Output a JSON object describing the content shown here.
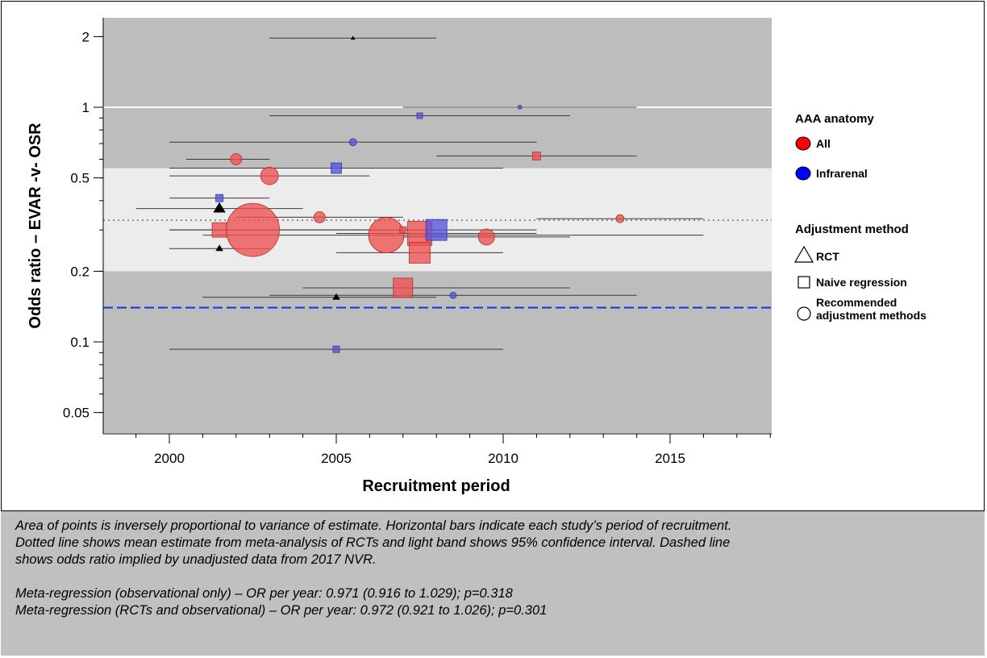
{
  "chart_data": {
    "type": "scatter",
    "xlabel": "Recruitment period",
    "ylabel": "Odds ratio – EVAR -v- OSR",
    "xlim": [
      1998,
      2018
    ],
    "ylim": [
      0.04,
      2.4
    ],
    "y_scale": "log",
    "x_ticks": [
      2000,
      2005,
      2010,
      2015
    ],
    "y_ticks": [
      0.05,
      0.1,
      0.2,
      0.5,
      1,
      2
    ],
    "y_tick_labels": [
      "0.05",
      "0.1",
      "0.2",
      "0.5",
      "1",
      "2"
    ],
    "reference_lines": {
      "null_odds_ratio": 1,
      "rct_meta_mean": 0.33,
      "rct_ci": [
        0.2,
        0.55
      ],
      "nvr_2017_unadjusted": 0.14
    },
    "colors": {
      "panel": "#bdbdbd",
      "ci_band": "#ececec",
      "all": "#f05050",
      "infrarenal": "#5555dd",
      "rct_marker": "#000000",
      "nvr_line": "#1a2fd6",
      "null_line": "#ffffff",
      "mean_line": "#8a8a8a"
    },
    "points": [
      {
        "x": 2005.5,
        "y": 1.97,
        "x_start": 2003,
        "x_end": 2008,
        "anatomy": "All",
        "method": "RCT",
        "size": 3
      },
      {
        "x": 2010.5,
        "y": 1.0,
        "x_start": 2007,
        "x_end": 2014,
        "anatomy": "Infrarenal",
        "method": "Recommended",
        "size": 2.5
      },
      {
        "x": 2007.5,
        "y": 0.92,
        "x_start": 2003,
        "x_end": 2012,
        "anatomy": "Infrarenal",
        "method": "Naive regression",
        "size": 3.5
      },
      {
        "x": 2005.5,
        "y": 0.71,
        "x_start": 2000,
        "x_end": 2011,
        "anatomy": "Infrarenal",
        "method": "Recommended",
        "size": 4.5
      },
      {
        "x": 2011,
        "y": 0.62,
        "x_start": 2008,
        "x_end": 2014,
        "anatomy": "All",
        "method": "Naive regression",
        "size": 5
      },
      {
        "x": 2002,
        "y": 0.6,
        "x_start": 2000.5,
        "x_end": 2003,
        "anatomy": "All",
        "method": "Recommended",
        "size": 7
      },
      {
        "x": 2005,
        "y": 0.55,
        "x_start": 2000,
        "x_end": 2010,
        "anatomy": "Infrarenal",
        "method": "Naive regression",
        "size": 6.5
      },
      {
        "x": 2003,
        "y": 0.51,
        "x_start": 2000,
        "x_end": 2006,
        "anatomy": "All",
        "method": "Recommended",
        "size": 11
      },
      {
        "x": 2001.5,
        "y": 0.41,
        "x_start": 2000,
        "x_end": 2003,
        "anatomy": "Infrarenal",
        "method": "Naive regression",
        "size": 4.5
      },
      {
        "x": 2001.5,
        "y": 0.37,
        "x_start": 1999,
        "x_end": 2004,
        "anatomy": "All",
        "method": "RCT",
        "size": 8
      },
      {
        "x": 2004.5,
        "y": 0.34,
        "x_start": 2002,
        "x_end": 2007,
        "anatomy": "All",
        "method": "Recommended",
        "size": 7
      },
      {
        "x": 2013.5,
        "y": 0.335,
        "x_start": 2011,
        "x_end": 2016,
        "anatomy": "All",
        "method": "Recommended",
        "size": 5
      },
      {
        "x": 2002.5,
        "y": 0.3,
        "x_start": 2000,
        "x_end": 2005,
        "anatomy": "All",
        "method": "Recommended",
        "size": 33
      },
      {
        "x": 2001.5,
        "y": 0.3,
        "x_start": 2000,
        "x_end": 2005,
        "anatomy": "All",
        "method": "Naive regression",
        "size": 9
      },
      {
        "x": 2008,
        "y": 0.3,
        "x_start": 2005,
        "x_end": 2011,
        "anatomy": "Infrarenal",
        "method": "Naive regression",
        "size": 13
      },
      {
        "x": 2007.5,
        "y": 0.29,
        "x_start": 2005,
        "x_end": 2011,
        "anatomy": "All",
        "method": "Naive regression",
        "size": 15
      },
      {
        "x": 2006.5,
        "y": 0.285,
        "x_start": 2001,
        "x_end": 2016,
        "anatomy": "All",
        "method": "Recommended",
        "size": 22
      },
      {
        "x": 2009.5,
        "y": 0.28,
        "x_start": 2007,
        "x_end": 2012,
        "anatomy": "All",
        "method": "Recommended",
        "size": 10
      },
      {
        "x": 2007,
        "y": 0.3,
        "x_start": 2005,
        "x_end": 2008,
        "anatomy": "All",
        "method": "Naive regression",
        "size": 4
      },
      {
        "x": 2007.5,
        "y": 0.24,
        "x_start": 2005,
        "x_end": 2010,
        "anatomy": "All",
        "method": "Naive regression",
        "size": 13
      },
      {
        "x": 2001.5,
        "y": 0.25,
        "x_start": 2000,
        "x_end": 2003,
        "anatomy": "All",
        "method": "RCT",
        "size": 5
      },
      {
        "x": 2007,
        "y": 0.17,
        "x_start": 2004,
        "x_end": 2012,
        "anatomy": "All",
        "method": "Naive regression",
        "size": 12
      },
      {
        "x": 2005,
        "y": 0.155,
        "x_start": 2001,
        "x_end": 2008,
        "anatomy": "All",
        "method": "RCT",
        "size": 5
      },
      {
        "x": 2008.5,
        "y": 0.158,
        "x_start": 2003,
        "x_end": 2014,
        "anatomy": "Infrarenal",
        "method": "Recommended",
        "size": 4
      },
      {
        "x": 2005,
        "y": 0.093,
        "x_start": 2000,
        "x_end": 2010,
        "anatomy": "Infrarenal",
        "method": "Naive regression",
        "size": 4
      }
    ]
  },
  "legend": {
    "anatomy_title": "AAA anatomy",
    "anatomy_items": [
      {
        "label": "All",
        "color": "#ff0000"
      },
      {
        "label": "Infrarenal",
        "color": "#0000ff"
      }
    ],
    "method_title": "Adjustment method",
    "method_items": [
      {
        "label": "RCT",
        "shape": "triangle"
      },
      {
        "label": "Naive regression",
        "shape": "square"
      },
      {
        "label": "Recommended\nadjustment methods",
        "shape": "circle"
      }
    ]
  },
  "caption": {
    "line1": "Area of points is inversely proportional to variance of estimate. Horizontal bars indicate each study’s period of recruitment.",
    "line2": "Dotted line shows mean estimate from meta-analysis of RCTs and light band shows 95% confidence interval. Dashed line",
    "line3": "shows odds ratio implied by unadjusted data from 2017 NVR.",
    "line4": "Meta-regression (observational only) – OR per year: 0.971 (0.916 to 1.029); p=0.318",
    "line5": "Meta-regression (RCTs and observational) – OR per year: 0.972 (0.921 to 1.026); p=0.301"
  }
}
